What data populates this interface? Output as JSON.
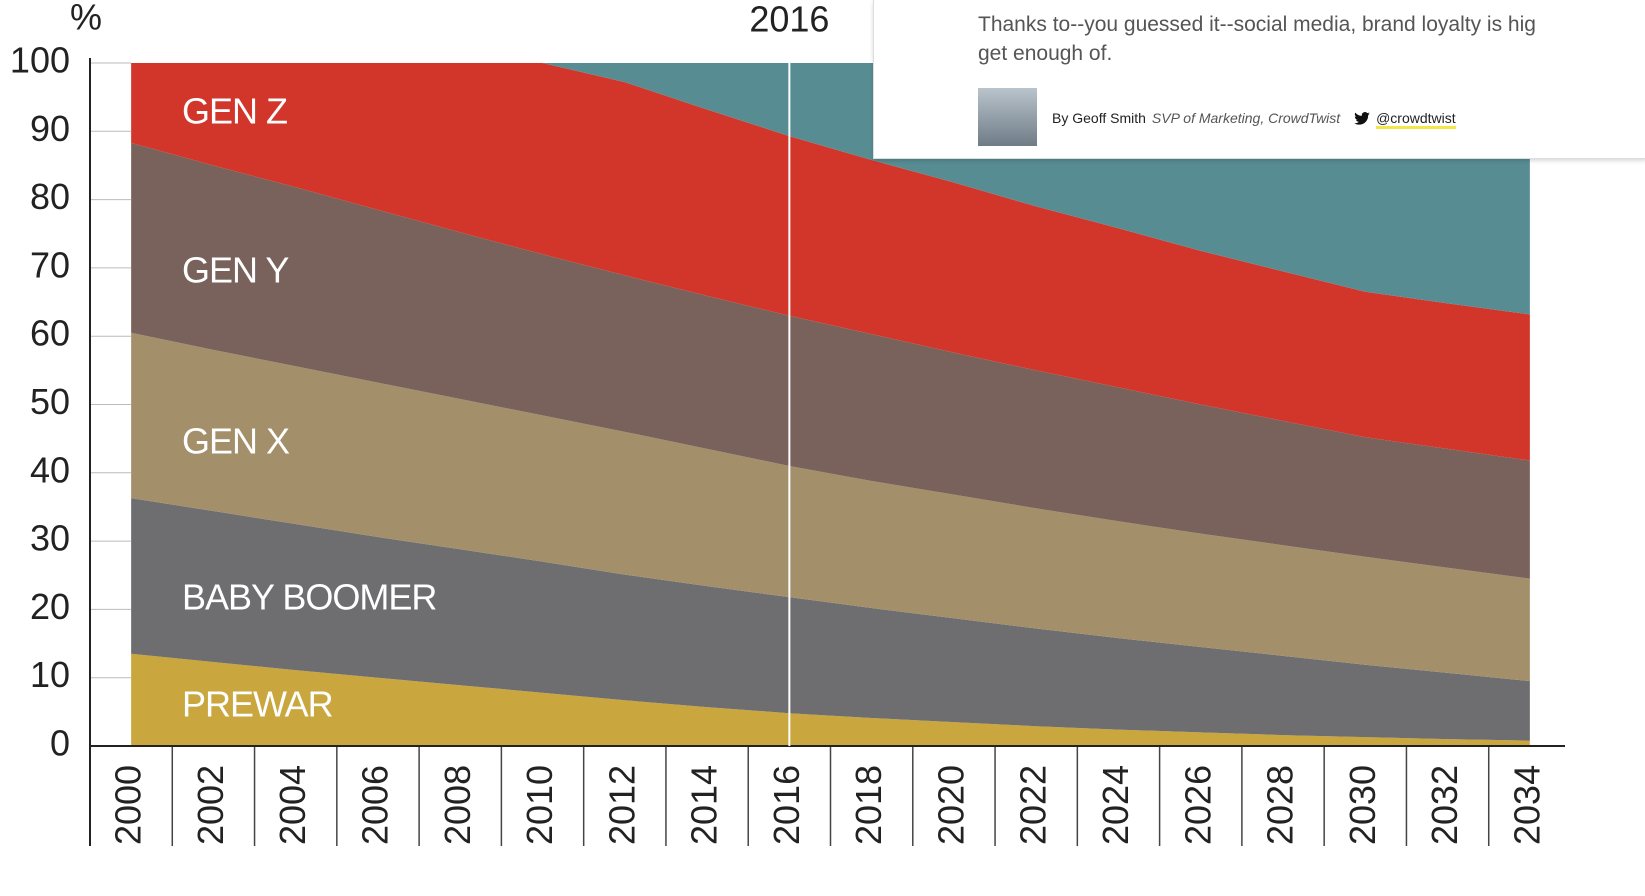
{
  "chart_data": {
    "type": "stacked_area",
    "y_label": "%",
    "marker_x": 2016,
    "x": [
      2000,
      2002,
      2004,
      2006,
      2008,
      2010,
      2012,
      2014,
      2016,
      2018,
      2020,
      2022,
      2024,
      2026,
      2028,
      2030,
      2032,
      2034
    ],
    "xlim": [
      1999,
      2035
    ],
    "xticks": [
      2000,
      2002,
      2004,
      2006,
      2008,
      2010,
      2012,
      2014,
      2016,
      2018,
      2020,
      2022,
      2024,
      2026,
      2028,
      2030,
      2032,
      2034
    ],
    "ylim": [
      0,
      100
    ],
    "yticks": [
      0,
      10,
      20,
      30,
      40,
      50,
      60,
      70,
      80,
      90,
      100
    ],
    "series": [
      {
        "name": "PREWAR",
        "color": "#c9a63e",
        "values": [
          13.5,
          12.3,
          11.1,
          10,
          8.9,
          7.8,
          6.7,
          5.7,
          4.8,
          4.1,
          3.5,
          2.9,
          2.4,
          2.0,
          1.6,
          1.3,
          1.0,
          0.8
        ]
      },
      {
        "name": "BABY BOOMER",
        "color": "#6e6e70",
        "values": [
          22.8,
          22.1,
          21.4,
          20.6,
          19.9,
          19.2,
          18.4,
          17.7,
          17.0,
          16.1,
          15.2,
          14.3,
          13.4,
          12.5,
          11.6,
          10.6,
          9.7,
          8.7
        ]
      },
      {
        "name": "GEN X",
        "color": "#a38f6a",
        "values": [
          24.2,
          23.6,
          23.1,
          22.6,
          22.0,
          21.4,
          20.9,
          20.1,
          19.2,
          18.6,
          18.1,
          17.6,
          17.1,
          16.6,
          16.2,
          15.8,
          15.4,
          15.0
        ]
      },
      {
        "name": "GEN Y",
        "color": "#7a625c",
        "values": [
          27.8,
          27,
          26.2,
          25.3,
          24.4,
          23.6,
          22.9,
          22.4,
          22,
          21.5,
          20.8,
          20.2,
          19.6,
          18.9,
          18.2,
          17.5,
          17.4,
          17.3
        ]
      },
      {
        "name": "GEN Z",
        "color": "#d2362b",
        "values": [
          11.7,
          15,
          18.2,
          21.5,
          24.8,
          28,
          28.3,
          27.3,
          26.3,
          25.5,
          24.9,
          24,
          23.3,
          22.5,
          21.9,
          21.3,
          21.3,
          21.4
        ]
      },
      {
        "color": "#578d92",
        "values": [
          0,
          0,
          0,
          0,
          0,
          0,
          2.8,
          6.8,
          10.7,
          14.2,
          17.5,
          21,
          24.2,
          27.5,
          30.5,
          33.5,
          35.2,
          36.8
        ]
      }
    ]
  },
  "card": {
    "lead": [
      "Thanks to--you guessed it--social media, brand loyalty is hig",
      "get enough of."
    ],
    "author": "By Geoff Smith",
    "role": "SVP of Marketing, CrowdTwist",
    "handle": "@crowdtwist"
  }
}
